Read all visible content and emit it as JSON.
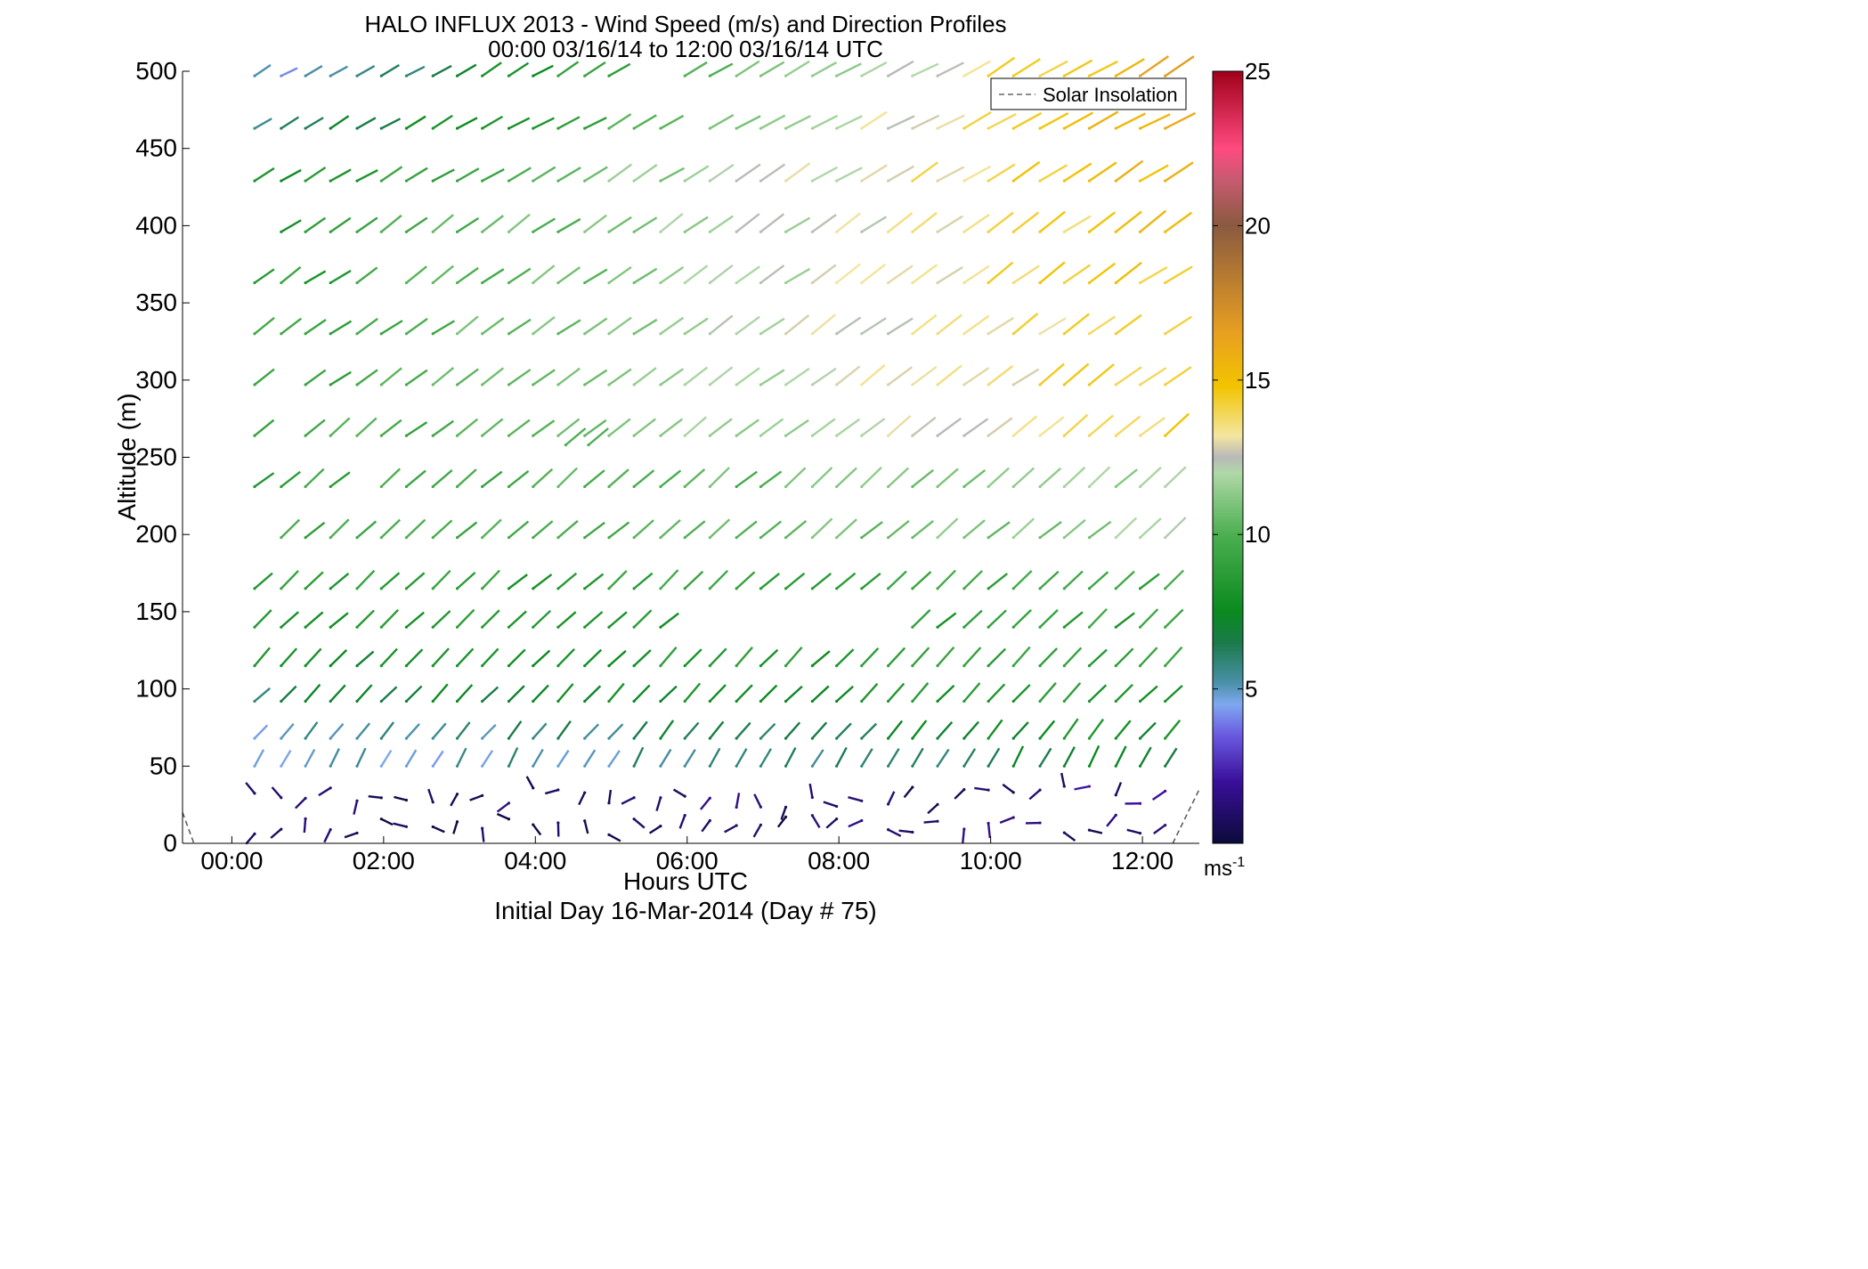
{
  "chart_data": {
    "type": "quiver",
    "title": "HALO INFLUX 2013 - Wind Speed (m/s) and Direction Profiles",
    "subtitle": "00:00 03/16/14 to 12:00 03/16/14  UTC",
    "xlabel": "Hours UTC",
    "xlabel_note": "Initial Day 16-Mar-2014 (Day # 75)",
    "ylabel": "Altitude (m)",
    "xlim": [
      -0.65,
      12.75
    ],
    "ylim": [
      0,
      500
    ],
    "x_ticks": [
      0,
      2,
      4,
      6,
      8,
      10,
      12
    ],
    "x_tick_labels": [
      "00:00",
      "02:00",
      "04:00",
      "06:00",
      "08:00",
      "10:00",
      "12:00"
    ],
    "y_ticks": [
      0,
      50,
      100,
      150,
      200,
      250,
      300,
      350,
      400,
      450,
      500
    ],
    "y_tick_labels": [
      "0",
      "50",
      "100",
      "150",
      "200",
      "250",
      "300",
      "350",
      "400",
      "450",
      "500"
    ],
    "legend": {
      "entries": [
        "Solar Insolation"
      ],
      "placement": "top-right"
    },
    "colorbar": {
      "range": [
        0,
        25
      ],
      "ticks": [
        5,
        10,
        15,
        20,
        25
      ],
      "tick_labels": [
        "5",
        "10",
        "15",
        "20",
        "25"
      ],
      "unit_label": "ms",
      "unit_exponent": "-1"
    },
    "colormap": [
      [
        0,
        "#0b0b3a"
      ],
      [
        2,
        "#3a0f9a"
      ],
      [
        3.5,
        "#6a5ae0"
      ],
      [
        4.5,
        "#7fa8f0"
      ],
      [
        5.2,
        "#4a90a8"
      ],
      [
        6.5,
        "#1a7a4a"
      ],
      [
        7.5,
        "#0a8a1e"
      ],
      [
        10,
        "#4caf50"
      ],
      [
        12,
        "#b0d8a8"
      ],
      [
        12.5,
        "#b8b8b8"
      ],
      [
        13.2,
        "#f4e6a0"
      ],
      [
        14.8,
        "#f2c400"
      ],
      [
        16.5,
        "#e8a020"
      ],
      [
        20,
        "#8a5a40"
      ],
      [
        21.5,
        "#c85a70"
      ],
      [
        22.5,
        "#ff4a80"
      ],
      [
        25,
        "#a0001a"
      ]
    ],
    "solar_insolation": [
      {
        "x": [
          -0.65,
          -0.5
        ],
        "y": [
          20,
          0
        ]
      },
      {
        "x": [
          12.4,
          12.75
        ],
        "y": [
          0,
          35
        ]
      }
    ],
    "profile_times": [
      0.3,
      0.65,
      0.97,
      1.3,
      1.65,
      1.97,
      2.3,
      2.65,
      2.97,
      3.3,
      3.65,
      3.97,
      4.3,
      4.65,
      4.97,
      5.3,
      5.65,
      5.97,
      6.3,
      6.65,
      6.97,
      7.3,
      7.65,
      7.97,
      8.3,
      8.65,
      8.97,
      9.3,
      9.65,
      9.97,
      10.3,
      10.65,
      10.97,
      11.3,
      11.65,
      11.97,
      12.3
    ],
    "levels": [
      {
        "alt": 497,
        "speed_start": 4.5,
        "speed_end": 16,
        "dir": 30,
        "missing": [
          15,
          16
        ]
      },
      {
        "alt": 463,
        "speed_start": 5.5,
        "speed_end": 16.5,
        "dir": 30,
        "missing": [
          17
        ]
      },
      {
        "alt": 429,
        "speed_start": 8,
        "speed_end": 15.5,
        "dir": 32,
        "missing": []
      },
      {
        "alt": 396,
        "speed_start": 8.5,
        "speed_end": 15,
        "dir": 35,
        "missing": [
          0
        ]
      },
      {
        "alt": 363,
        "speed_start": 8.5,
        "speed_end": 15,
        "dir": 35,
        "missing": [
          5
        ]
      },
      {
        "alt": 330,
        "speed_start": 9,
        "speed_end": 14.5,
        "dir": 35,
        "missing": [
          35
        ]
      },
      {
        "alt": 297,
        "speed_start": 9,
        "speed_end": 14.5,
        "dir": 36,
        "missing": [
          1
        ]
      },
      {
        "alt": 264,
        "speed_start": 9,
        "speed_end": 14,
        "dir": 38,
        "missing": [
          1
        ]
      },
      {
        "alt": 231,
        "speed_start": 9,
        "speed_end": 11.5,
        "dir": 40,
        "missing": [
          4
        ]
      },
      {
        "alt": 198,
        "speed_start": 9,
        "speed_end": 11.5,
        "dir": 40,
        "missing": [
          0
        ]
      },
      {
        "alt": 165,
        "speed_start": 8.5,
        "speed_end": 9.5,
        "dir": 42,
        "missing": []
      },
      {
        "alt": 140,
        "speed_start": 8,
        "speed_end": 9,
        "dir": 42,
        "missing": [
          17,
          18,
          19,
          20,
          21,
          22,
          23,
          24,
          25
        ]
      },
      {
        "alt": 115,
        "speed_start": 7.5,
        "speed_end": 9,
        "dir": 45,
        "missing": []
      },
      {
        "alt": 92,
        "speed_start": 6.5,
        "speed_end": 8.5,
        "dir": 45,
        "missing": []
      },
      {
        "alt": 68,
        "speed_start": 5,
        "speed_end": 8,
        "dir": 50,
        "missing": []
      },
      {
        "alt": 50,
        "speed_start": 4.5,
        "speed_end": 7,
        "dir": 60,
        "missing": []
      },
      {
        "alt": 30,
        "speed_start": 0.5,
        "speed_end": 1.5,
        "dir": 160,
        "missing": []
      },
      {
        "alt": 12,
        "speed_start": 0.3,
        "speed_end": 1.2,
        "dir": 250,
        "missing": []
      }
    ],
    "isolated_vectors": [
      {
        "x": 4.4,
        "alt": 258,
        "speed": 10,
        "dir": 40
      },
      {
        "x": 4.7,
        "alt": 258,
        "speed": 10,
        "dir": 40
      }
    ]
  }
}
